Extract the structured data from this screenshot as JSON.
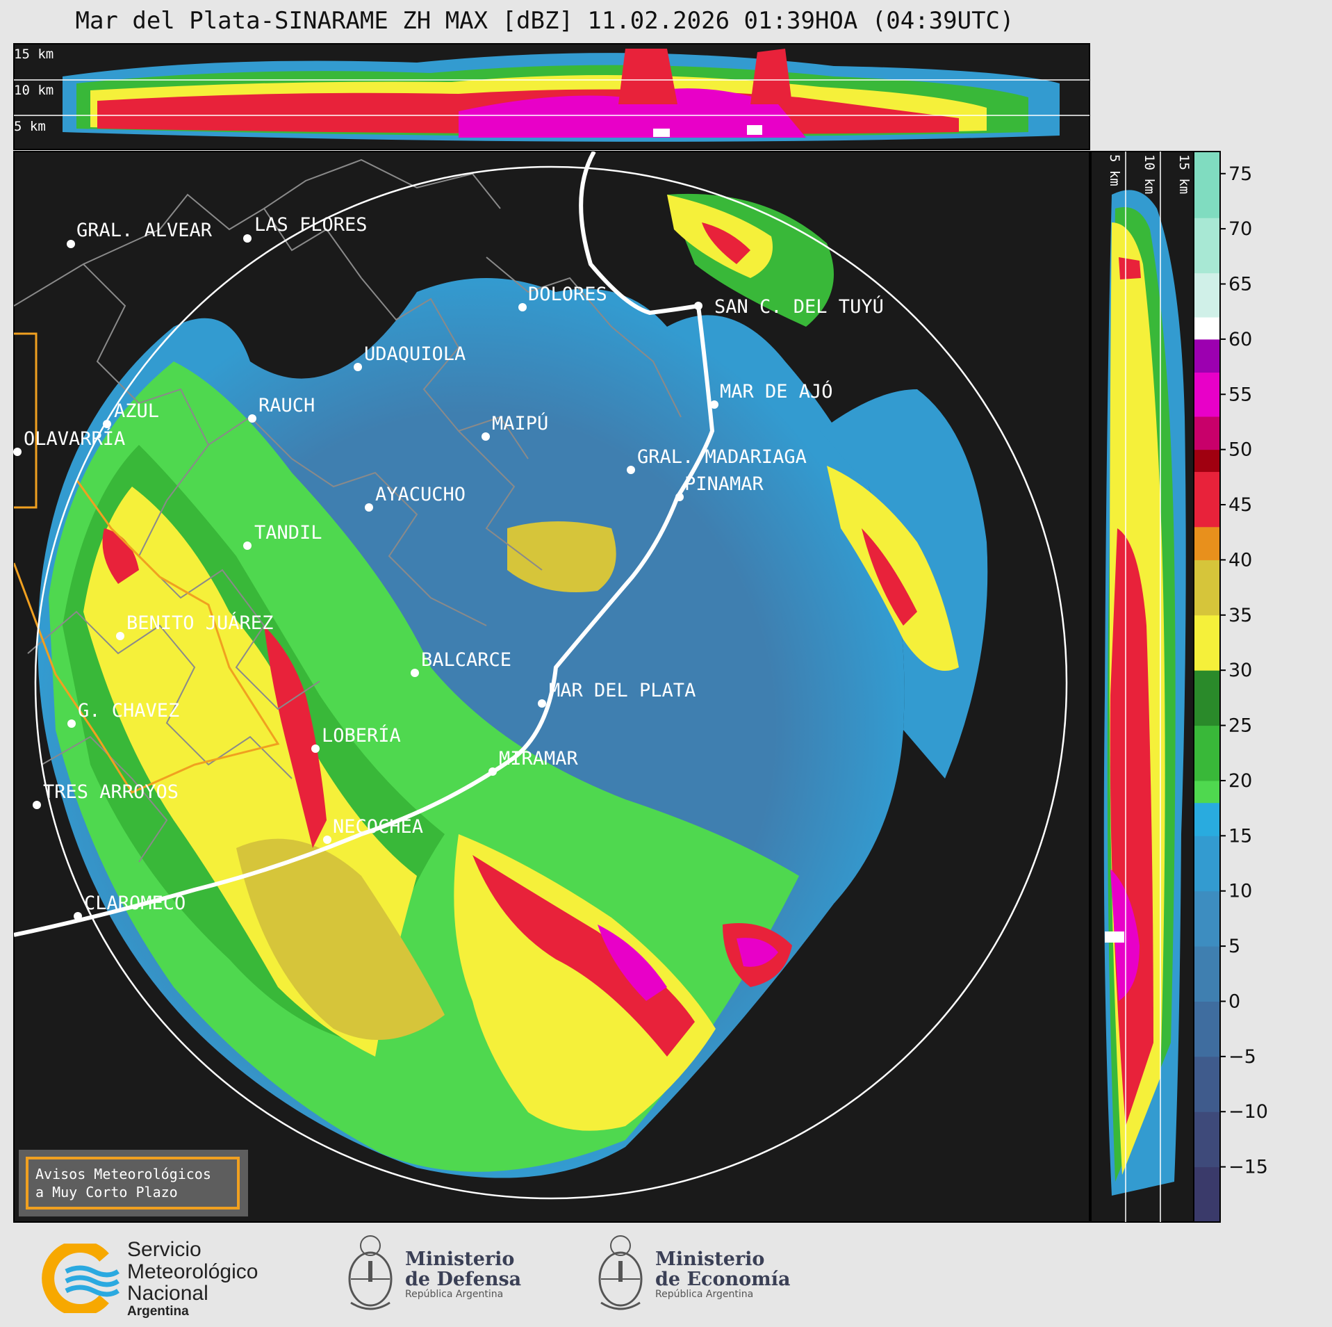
{
  "header": {
    "title": "Mar del Plata-SINARAME ZH MAX [dBZ] 11.02.2026 01:39HOA (04:39UTC)"
  },
  "top_profile": {
    "height_labels": [
      "15 km",
      "10 km",
      "5 km"
    ]
  },
  "side_profile": {
    "height_labels": [
      "5 km",
      "10 km",
      "15 km"
    ]
  },
  "colorbar": {
    "ticks": [
      "75",
      "70",
      "65",
      "60",
      "55",
      "50",
      "45",
      "40",
      "35",
      "30",
      "25",
      "20",
      "15",
      "10",
      "5",
      "0",
      "−5",
      "−10",
      "−15"
    ],
    "values": [
      75,
      70,
      65,
      60,
      55,
      50,
      45,
      40,
      35,
      30,
      25,
      20,
      15,
      10,
      5,
      0,
      -5,
      -10,
      -15
    ],
    "range": [
      -20,
      77
    ],
    "segments": [
      {
        "from": -20,
        "to": -15,
        "color": "#3a3a6a"
      },
      {
        "from": -15,
        "to": -10,
        "color": "#3e4a7a"
      },
      {
        "from": -10,
        "to": -5,
        "color": "#3f5b8c"
      },
      {
        "from": -5,
        "to": 0,
        "color": "#3f6d9f"
      },
      {
        "from": 0,
        "to": 5,
        "color": "#3f7fb0"
      },
      {
        "from": 5,
        "to": 10,
        "color": "#3d8dc0"
      },
      {
        "from": 10,
        "to": 15,
        "color": "#339bd0"
      },
      {
        "from": 15,
        "to": 18,
        "color": "#29abdf"
      },
      {
        "from": 18,
        "to": 20,
        "color": "#4fd84f"
      },
      {
        "from": 20,
        "to": 25,
        "color": "#39b839"
      },
      {
        "from": 25,
        "to": 30,
        "color": "#2a8a2a"
      },
      {
        "from": 30,
        "to": 35,
        "color": "#f5f03a"
      },
      {
        "from": 35,
        "to": 40,
        "color": "#d6c53a"
      },
      {
        "from": 40,
        "to": 43,
        "color": "#e8901c"
      },
      {
        "from": 43,
        "to": 48,
        "color": "#e8223a"
      },
      {
        "from": 48,
        "to": 50,
        "color": "#a00010"
      },
      {
        "from": 50,
        "to": 53,
        "color": "#c8006a"
      },
      {
        "from": 53,
        "to": 57,
        "color": "#e800c8"
      },
      {
        "from": 57,
        "to": 60,
        "color": "#9c00b0"
      },
      {
        "from": 60,
        "to": 62,
        "color": "#ffffff"
      },
      {
        "from": 62,
        "to": 66,
        "color": "#d0f0e8"
      },
      {
        "from": 66,
        "to": 71,
        "color": "#a8e8d4"
      },
      {
        "from": 71,
        "to": 77,
        "color": "#80dcc0"
      }
    ]
  },
  "cities": [
    {
      "name": "GRAL. ALVEAR"
    },
    {
      "name": "LAS FLORES"
    },
    {
      "name": "DOLORES"
    },
    {
      "name": "SAN C. DEL TUYÚ"
    },
    {
      "name": "UDAQUIOLA"
    },
    {
      "name": "MAR DE AJÓ"
    },
    {
      "name": "AZUL"
    },
    {
      "name": "RAUCH"
    },
    {
      "name": "OLAVARRÍA"
    },
    {
      "name": "MAIPÚ"
    },
    {
      "name": "GRAL. MADARIAGA"
    },
    {
      "name": "PINAMAR"
    },
    {
      "name": "AYACUCHO"
    },
    {
      "name": "TANDIL"
    },
    {
      "name": "BENITO JUÁREZ"
    },
    {
      "name": "BALCARCE"
    },
    {
      "name": "MAR DEL PLATA"
    },
    {
      "name": "G. CHAVEZ"
    },
    {
      "name": "LOBERÍA"
    },
    {
      "name": "MIRAMAR"
    },
    {
      "name": "TRES ARROYOS"
    },
    {
      "name": "NECOCHEA"
    },
    {
      "name": "CLAROMECÓ"
    }
  ],
  "warning_box": {
    "line1": "Avisos Meteorológicos",
    "line2": "a Muy Corto Plazo"
  },
  "logos": {
    "smn": {
      "line1": "Servicio",
      "line2": "Meteorológico",
      "line3": "Nacional",
      "sub": "Argentina"
    },
    "defensa": {
      "line1": "Ministerio",
      "line2": "de Defensa",
      "sub": "República Argentina"
    },
    "economia": {
      "line1": "Ministerio",
      "line2": "de Economía",
      "sub": "República Argentina"
    }
  },
  "colors": {
    "panel_bg": "#1a1a1a",
    "page_bg": "#e6e6e6",
    "coast": "#ffffff",
    "warning_border": "#f0a020"
  }
}
